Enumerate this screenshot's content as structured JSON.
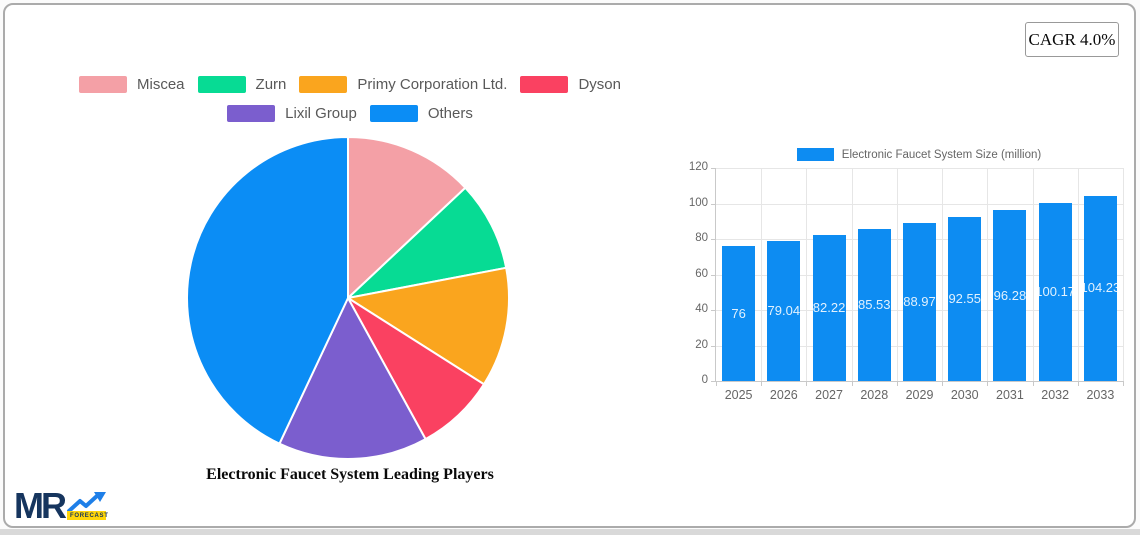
{
  "cagr": {
    "label": "CAGR 4.0%"
  },
  "logo": {
    "text": "MR",
    "sub": "FORECAST",
    "colors": {
      "navy": "#16355E",
      "blue": "#1E7FE8",
      "yellow": "#FFD60A"
    }
  },
  "chart_data": [
    {
      "type": "pie",
      "title": "Electronic Faucet System Leading Players",
      "labels": [
        "Miscea",
        "Zurn",
        "Primy Corporation Ltd.",
        "Dyson",
        "Lixil Group",
        "Others"
      ],
      "values": [
        13,
        9,
        12,
        8,
        15,
        43
      ],
      "colors": [
        "#F4A0A6",
        "#07DB94",
        "#FAA51E",
        "#FA4161",
        "#7B5ECE",
        "#0B8DF5"
      ],
      "legend_rows": [
        4,
        2
      ],
      "legend_position": "top",
      "start_angle_deg": 0,
      "direction": "clockwise",
      "slice_border_color": "#FFFFFF"
    },
    {
      "type": "bar",
      "legend": "Electronic Faucet System Size (million)",
      "categories": [
        "2025",
        "2026",
        "2027",
        "2028",
        "2029",
        "2030",
        "2031",
        "2032",
        "2033"
      ],
      "values": [
        76,
        79.04,
        82.22,
        85.53,
        88.97,
        92.55,
        96.28,
        100.17,
        104.23
      ],
      "bar_color": "#0D8CF2",
      "ylim": [
        0,
        120
      ],
      "yticks": [
        0,
        20,
        40,
        60,
        80,
        100,
        120
      ],
      "grid": true,
      "legend_position": "top",
      "value_labels_inside_bars": true
    }
  ]
}
